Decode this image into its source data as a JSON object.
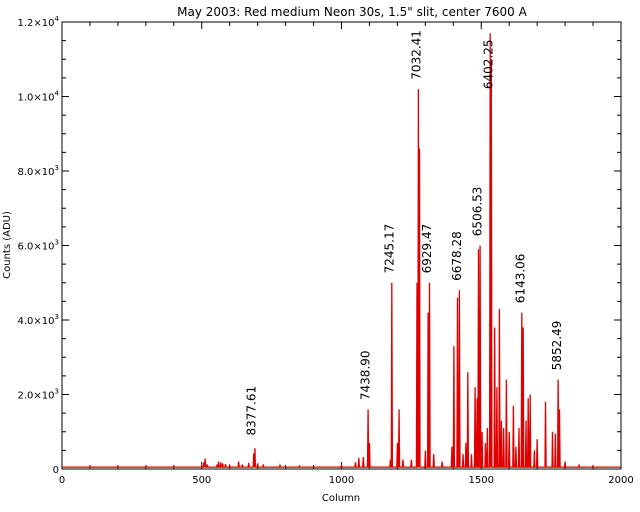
{
  "chart_data": {
    "type": "line",
    "title": "May 2003: Red medium Neon 30s, 1.5\" slit, center 7600 A",
    "xlabel": "Column",
    "ylabel": "Counts (ADU)",
    "xlim": [
      0,
      2000
    ],
    "ylim": [
      0,
      12000
    ],
    "grid": false,
    "line_color": "#e00000",
    "x_ticks": [
      {
        "value": 0,
        "label": "0"
      },
      {
        "value": 500,
        "label": "500"
      },
      {
        "value": 1000,
        "label": "1000"
      },
      {
        "value": 1500,
        "label": "1500"
      },
      {
        "value": 2000,
        "label": "2000"
      }
    ],
    "y_ticks": [
      {
        "value": 0,
        "label": "0"
      },
      {
        "value": 2000,
        "label": "2.0×10",
        "exp": "3"
      },
      {
        "value": 4000,
        "label": "4.0×10",
        "exp": "3"
      },
      {
        "value": 6000,
        "label": "6.0×10",
        "exp": "3"
      },
      {
        "value": 8000,
        "label": "8.0×10",
        "exp": "3"
      },
      {
        "value": 10000,
        "label": "1.0×10",
        "exp": "4"
      },
      {
        "value": 12000,
        "label": "1.2×10",
        "exp": "4"
      }
    ],
    "baseline": 50,
    "peaks": [
      [
        500,
        100
      ],
      [
        508,
        180
      ],
      [
        512,
        280
      ],
      [
        520,
        120
      ],
      [
        555,
        120
      ],
      [
        560,
        200
      ],
      [
        568,
        180
      ],
      [
        575,
        150
      ],
      [
        585,
        130
      ],
      [
        600,
        100
      ],
      [
        632,
        200
      ],
      [
        645,
        120
      ],
      [
        668,
        160
      ],
      [
        686,
        420
      ],
      [
        690,
        560
      ],
      [
        700,
        150
      ],
      [
        720,
        120
      ],
      [
        780,
        100
      ],
      [
        850,
        80
      ],
      [
        1000,
        100
      ],
      [
        1050,
        180
      ],
      [
        1062,
        300
      ],
      [
        1078,
        320
      ],
      [
        1095,
        1600
      ],
      [
        1100,
        700
      ],
      [
        1175,
        250
      ],
      [
        1180,
        5000
      ],
      [
        1200,
        700
      ],
      [
        1206,
        1600
      ],
      [
        1220,
        250
      ],
      [
        1250,
        250
      ],
      [
        1270,
        5000
      ],
      [
        1275,
        10200
      ],
      [
        1279,
        8600
      ],
      [
        1300,
        500
      ],
      [
        1310,
        4200
      ],
      [
        1315,
        5000
      ],
      [
        1330,
        400
      ],
      [
        1360,
        200
      ],
      [
        1395,
        600
      ],
      [
        1402,
        3300
      ],
      [
        1415,
        4600
      ],
      [
        1422,
        4800
      ],
      [
        1435,
        400
      ],
      [
        1445,
        700
      ],
      [
        1452,
        2600
      ],
      [
        1465,
        400
      ],
      [
        1478,
        2200
      ],
      [
        1485,
        1900
      ],
      [
        1490,
        5900
      ],
      [
        1496,
        6000
      ],
      [
        1503,
        1000
      ],
      [
        1515,
        700
      ],
      [
        1522,
        1100
      ],
      [
        1532,
        11700
      ],
      [
        1536,
        11000
      ],
      [
        1548,
        3800
      ],
      [
        1556,
        2200
      ],
      [
        1565,
        4300
      ],
      [
        1572,
        1300
      ],
      [
        1580,
        1100
      ],
      [
        1590,
        2400
      ],
      [
        1600,
        1000
      ],
      [
        1615,
        1700
      ],
      [
        1624,
        600
      ],
      [
        1635,
        1100
      ],
      [
        1645,
        4200
      ],
      [
        1650,
        3800
      ],
      [
        1660,
        1300
      ],
      [
        1668,
        1900
      ],
      [
        1675,
        2000
      ],
      [
        1690,
        500
      ],
      [
        1700,
        800
      ],
      [
        1730,
        1800
      ],
      [
        1755,
        1000
      ],
      [
        1765,
        950
      ],
      [
        1775,
        2400
      ],
      [
        1780,
        1600
      ],
      [
        1800,
        200
      ],
      [
        1850,
        100
      ],
      [
        1900,
        80
      ]
    ],
    "annotations": [
      {
        "text": "8377.61",
        "x": 692,
        "y": 900
      },
      {
        "text": "7438.90",
        "x": 1100,
        "y": 1850
      },
      {
        "text": "7245.17",
        "x": 1186,
        "y": 5250
      },
      {
        "text": "7032.41",
        "x": 1282,
        "y": 10450
      },
      {
        "text": "6929.47",
        "x": 1320,
        "y": 5250
      },
      {
        "text": "6678.28",
        "x": 1427,
        "y": 5050
      },
      {
        "text": "6506.53",
        "x": 1500,
        "y": 6250
      },
      {
        "text": "6402.25",
        "x": 1540,
        "y": 10200
      },
      {
        "text": "6143.06",
        "x": 1654,
        "y": 4450
      },
      {
        "text": "5852.49",
        "x": 1785,
        "y": 2650
      }
    ]
  }
}
